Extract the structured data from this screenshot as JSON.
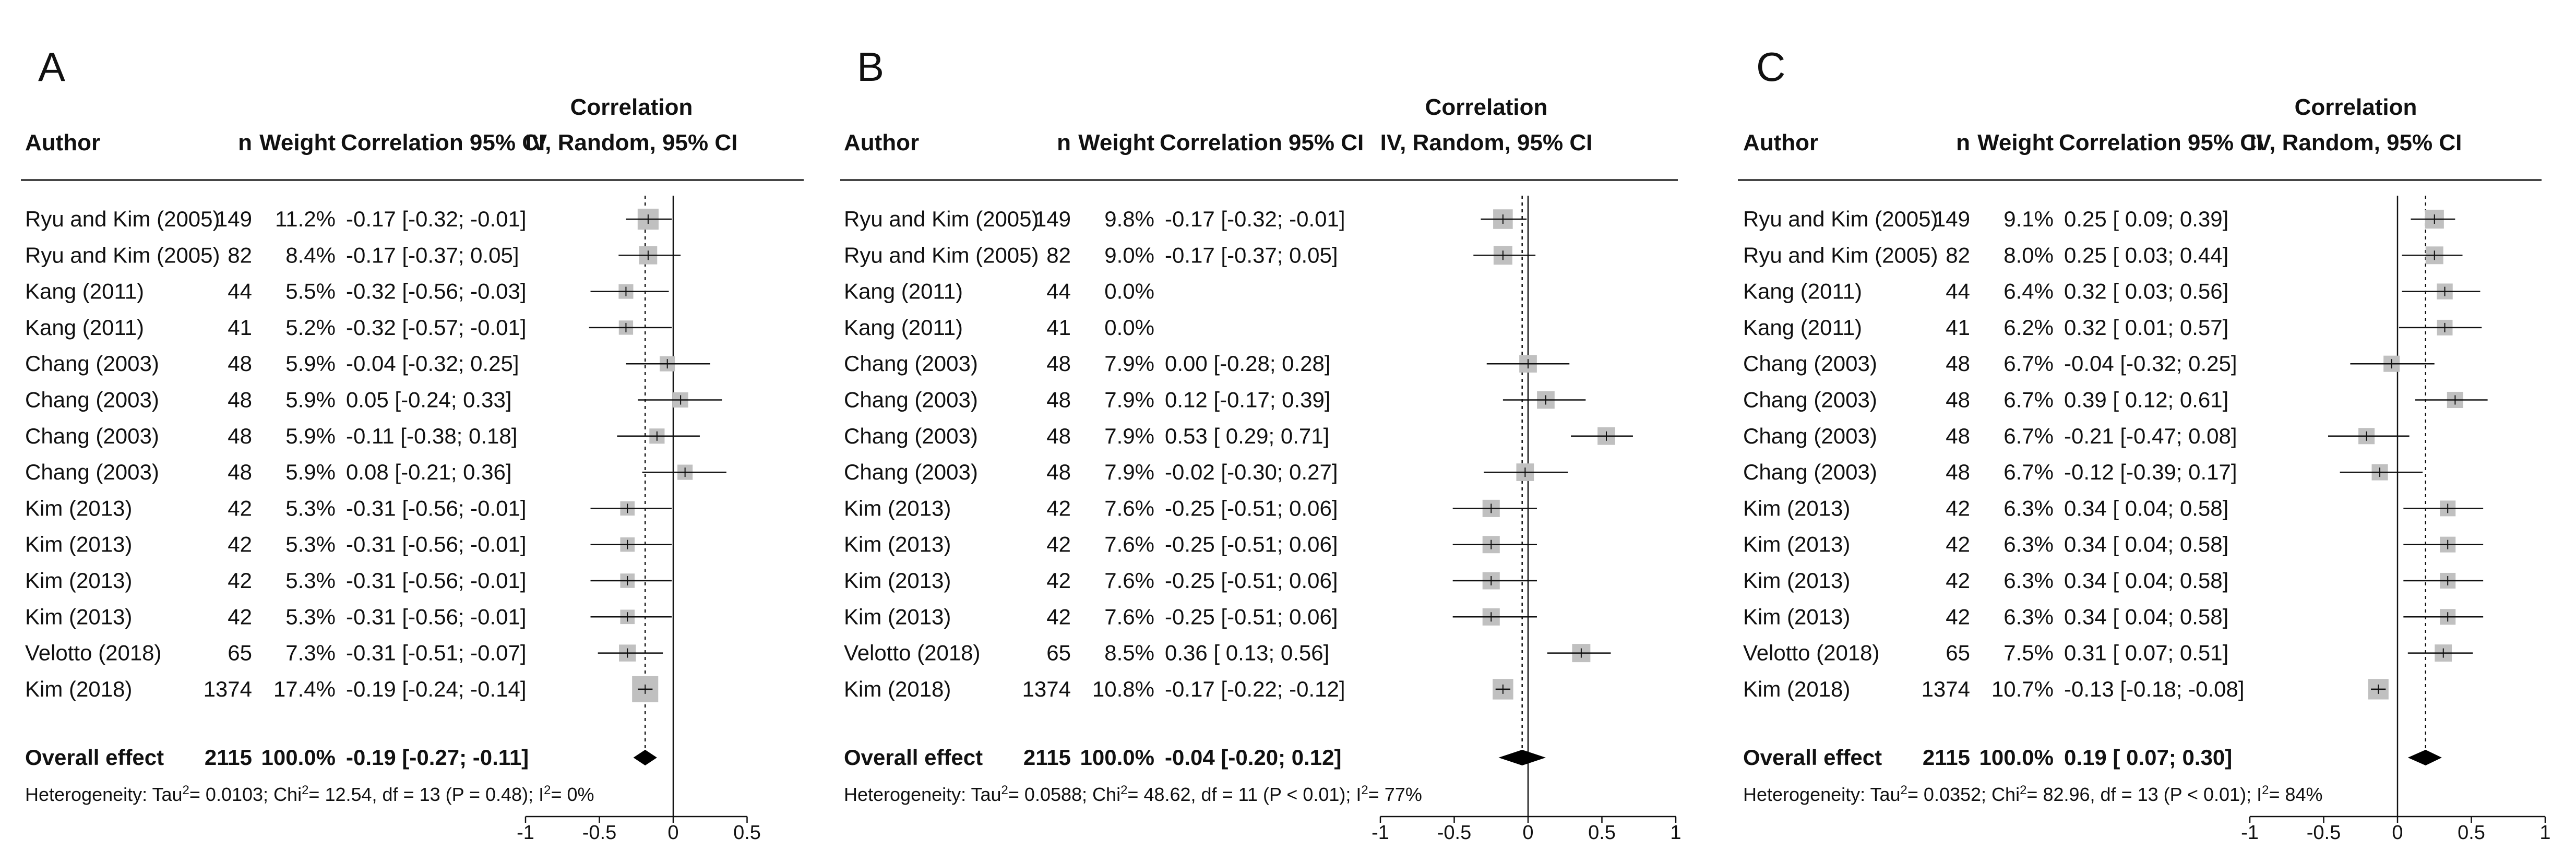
{
  "headers": {
    "author": "Author",
    "n": "n",
    "weight": "Weight",
    "correlation_ci": "Correlation 95% CI",
    "plot_line1": "Correlation",
    "plot_line2": "IV, Random, 95% CI"
  },
  "chart_data": [
    {
      "type": "forest",
      "panel": "A",
      "x_ticks": [
        "-1",
        "-0.5",
        "0",
        "0.5"
      ],
      "xlim": [
        -1,
        0.5
      ],
      "null_line": 0,
      "studies": [
        {
          "author": "Ryu and Kim (2005)",
          "n": "149",
          "weight": "11.2%",
          "ci_text": "-0.17 [-0.32; -0.01]",
          "estimate": -0.17,
          "lower": -0.32,
          "upper": -0.01,
          "w": 11.2
        },
        {
          "author": "Ryu and Kim (2005)",
          "n": "82",
          "weight": "8.4%",
          "ci_text": "-0.17 [-0.37; 0.05]",
          "estimate": -0.17,
          "lower": -0.37,
          "upper": 0.05,
          "w": 8.4
        },
        {
          "author": "Kang (2011)",
          "n": "44",
          "weight": "5.5%",
          "ci_text": "-0.32 [-0.56; -0.03]",
          "estimate": -0.32,
          "lower": -0.56,
          "upper": -0.03,
          "w": 5.5
        },
        {
          "author": "Kang (2011)",
          "n": "41",
          "weight": "5.2%",
          "ci_text": "-0.32 [-0.57; -0.01]",
          "estimate": -0.32,
          "lower": -0.57,
          "upper": -0.01,
          "w": 5.2
        },
        {
          "author": "Chang (2003)",
          "n": "48",
          "weight": "5.9%",
          "ci_text": "-0.04 [-0.32; 0.25]",
          "estimate": -0.04,
          "lower": -0.32,
          "upper": 0.25,
          "w": 5.9
        },
        {
          "author": "Chang (2003)",
          "n": "48",
          "weight": "5.9%",
          "ci_text": "0.05 [-0.24; 0.33]",
          "estimate": 0.05,
          "lower": -0.24,
          "upper": 0.33,
          "w": 5.9
        },
        {
          "author": "Chang (2003)",
          "n": "48",
          "weight": "5.9%",
          "ci_text": "-0.11 [-0.38; 0.18]",
          "estimate": -0.11,
          "lower": -0.38,
          "upper": 0.18,
          "w": 5.9
        },
        {
          "author": "Chang (2003)",
          "n": "48",
          "weight": "5.9%",
          "ci_text": "0.08 [-0.21; 0.36]",
          "estimate": 0.08,
          "lower": -0.21,
          "upper": 0.36,
          "w": 5.9
        },
        {
          "author": "Kim (2013)",
          "n": "42",
          "weight": "5.3%",
          "ci_text": "-0.31 [-0.56; -0.01]",
          "estimate": -0.31,
          "lower": -0.56,
          "upper": -0.01,
          "w": 5.3
        },
        {
          "author": "Kim (2013)",
          "n": "42",
          "weight": "5.3%",
          "ci_text": "-0.31 [-0.56; -0.01]",
          "estimate": -0.31,
          "lower": -0.56,
          "upper": -0.01,
          "w": 5.3
        },
        {
          "author": "Kim (2013)",
          "n": "42",
          "weight": "5.3%",
          "ci_text": "-0.31 [-0.56; -0.01]",
          "estimate": -0.31,
          "lower": -0.56,
          "upper": -0.01,
          "w": 5.3
        },
        {
          "author": "Kim (2013)",
          "n": "42",
          "weight": "5.3%",
          "ci_text": "-0.31 [-0.56; -0.01]",
          "estimate": -0.31,
          "lower": -0.56,
          "upper": -0.01,
          "w": 5.3
        },
        {
          "author": "Velotto (2018)",
          "n": "65",
          "weight": "7.3%",
          "ci_text": "-0.31 [-0.51; -0.07]",
          "estimate": -0.31,
          "lower": -0.51,
          "upper": -0.07,
          "w": 7.3
        },
        {
          "author": "Kim (2018)",
          "n": "1374",
          "weight": "17.4%",
          "ci_text": "-0.19 [-0.24; -0.14]",
          "estimate": -0.19,
          "lower": -0.24,
          "upper": -0.14,
          "w": 17.4
        }
      ],
      "overall": {
        "label": "Overall effect",
        "n": "2115",
        "weight": "100.0%",
        "ci_text": "-0.19 [-0.27; -0.11]",
        "estimate": -0.19,
        "lower": -0.27,
        "upper": -0.11
      },
      "heterogeneity": {
        "prefix": "Heterogeneity: Tau",
        "tau2": "= 0.0103; Chi",
        "chi2": "= 12.54, df = 13 (P = 0.48); I",
        "i2": "= 0%",
        "sup": "2"
      }
    },
    {
      "type": "forest",
      "panel": "B",
      "x_ticks": [
        "-1",
        "-0.5",
        "0",
        "0.5",
        "1"
      ],
      "xlim": [
        -1,
        1
      ],
      "null_line": 0,
      "studies": [
        {
          "author": "Ryu and Kim (2005)",
          "n": "149",
          "weight": "9.8%",
          "ci_text": "-0.17 [-0.32; -0.01]",
          "estimate": -0.17,
          "lower": -0.32,
          "upper": -0.01,
          "w": 9.8
        },
        {
          "author": "Ryu and Kim (2005)",
          "n": "82",
          "weight": "9.0%",
          "ci_text": "-0.17 [-0.37; 0.05]",
          "estimate": -0.17,
          "lower": -0.37,
          "upper": 0.05,
          "w": 9.0
        },
        {
          "author": "Kang (2011)",
          "n": "44",
          "weight": "0.0%",
          "ci_text": "",
          "estimate": null,
          "lower": null,
          "upper": null,
          "w": 0
        },
        {
          "author": "Kang (2011)",
          "n": "41",
          "weight": "0.0%",
          "ci_text": "",
          "estimate": null,
          "lower": null,
          "upper": null,
          "w": 0
        },
        {
          "author": "Chang (2003)",
          "n": "48",
          "weight": "7.9%",
          "ci_text": "0.00 [-0.28; 0.28]",
          "estimate": 0.0,
          "lower": -0.28,
          "upper": 0.28,
          "w": 7.9
        },
        {
          "author": "Chang (2003)",
          "n": "48",
          "weight": "7.9%",
          "ci_text": "0.12 [-0.17; 0.39]",
          "estimate": 0.12,
          "lower": -0.17,
          "upper": 0.39,
          "w": 7.9
        },
        {
          "author": "Chang (2003)",
          "n": "48",
          "weight": "7.9%",
          "ci_text": "0.53 [ 0.29; 0.71]",
          "estimate": 0.53,
          "lower": 0.29,
          "upper": 0.71,
          "w": 7.9
        },
        {
          "author": "Chang (2003)",
          "n": "48",
          "weight": "7.9%",
          "ci_text": "-0.02 [-0.30; 0.27]",
          "estimate": -0.02,
          "lower": -0.3,
          "upper": 0.27,
          "w": 7.9
        },
        {
          "author": "Kim (2013)",
          "n": "42",
          "weight": "7.6%",
          "ci_text": "-0.25 [-0.51; 0.06]",
          "estimate": -0.25,
          "lower": -0.51,
          "upper": 0.06,
          "w": 7.6
        },
        {
          "author": "Kim (2013)",
          "n": "42",
          "weight": "7.6%",
          "ci_text": "-0.25 [-0.51; 0.06]",
          "estimate": -0.25,
          "lower": -0.51,
          "upper": 0.06,
          "w": 7.6
        },
        {
          "author": "Kim (2013)",
          "n": "42",
          "weight": "7.6%",
          "ci_text": "-0.25 [-0.51; 0.06]",
          "estimate": -0.25,
          "lower": -0.51,
          "upper": 0.06,
          "w": 7.6
        },
        {
          "author": "Kim (2013)",
          "n": "42",
          "weight": "7.6%",
          "ci_text": "-0.25 [-0.51; 0.06]",
          "estimate": -0.25,
          "lower": -0.51,
          "upper": 0.06,
          "w": 7.6
        },
        {
          "author": "Velotto (2018)",
          "n": "65",
          "weight": "8.5%",
          "ci_text": "0.36 [ 0.13; 0.56]",
          "estimate": 0.36,
          "lower": 0.13,
          "upper": 0.56,
          "w": 8.5
        },
        {
          "author": "Kim (2018)",
          "n": "1374",
          "weight": "10.8%",
          "ci_text": "-0.17 [-0.22; -0.12]",
          "estimate": -0.17,
          "lower": -0.22,
          "upper": -0.12,
          "w": 10.8
        }
      ],
      "overall": {
        "label": "Overall effect",
        "n": "2115",
        "weight": "100.0%",
        "ci_text": "-0.04 [-0.20; 0.12]",
        "estimate": -0.04,
        "lower": -0.2,
        "upper": 0.12
      },
      "heterogeneity": {
        "prefix": "Heterogeneity: Tau",
        "tau2": "= 0.0588; Chi",
        "chi2": "= 48.62, df = 11 (P < 0.01); I",
        "i2": "= 77%",
        "sup": "2"
      }
    },
    {
      "type": "forest",
      "panel": "C",
      "x_ticks": [
        "-1",
        "-0.5",
        "0",
        "0.5",
        "1"
      ],
      "xlim": [
        -1,
        1
      ],
      "null_line": 0,
      "studies": [
        {
          "author": "Ryu and Kim (2005)",
          "n": "149",
          "weight": "9.1%",
          "ci_text": "0.25 [ 0.09; 0.39]",
          "estimate": 0.25,
          "lower": 0.09,
          "upper": 0.39,
          "w": 9.1
        },
        {
          "author": "Ryu and Kim (2005)",
          "n": "82",
          "weight": "8.0%",
          "ci_text": "0.25 [ 0.03; 0.44]",
          "estimate": 0.25,
          "lower": 0.03,
          "upper": 0.44,
          "w": 8.0
        },
        {
          "author": "Kang (2011)",
          "n": "44",
          "weight": "6.4%",
          "ci_text": "0.32 [ 0.03; 0.56]",
          "estimate": 0.32,
          "lower": 0.03,
          "upper": 0.56,
          "w": 6.4
        },
        {
          "author": "Kang (2011)",
          "n": "41",
          "weight": "6.2%",
          "ci_text": "0.32 [ 0.01; 0.57]",
          "estimate": 0.32,
          "lower": 0.01,
          "upper": 0.57,
          "w": 6.2
        },
        {
          "author": "Chang (2003)",
          "n": "48",
          "weight": "6.7%",
          "ci_text": "-0.04 [-0.32; 0.25]",
          "estimate": -0.04,
          "lower": -0.32,
          "upper": 0.25,
          "w": 6.7
        },
        {
          "author": "Chang (2003)",
          "n": "48",
          "weight": "6.7%",
          "ci_text": "0.39 [ 0.12; 0.61]",
          "estimate": 0.39,
          "lower": 0.12,
          "upper": 0.61,
          "w": 6.7
        },
        {
          "author": "Chang (2003)",
          "n": "48",
          "weight": "6.7%",
          "ci_text": "-0.21 [-0.47; 0.08]",
          "estimate": -0.21,
          "lower": -0.47,
          "upper": 0.08,
          "w": 6.7
        },
        {
          "author": "Chang (2003)",
          "n": "48",
          "weight": "6.7%",
          "ci_text": "-0.12 [-0.39; 0.17]",
          "estimate": -0.12,
          "lower": -0.39,
          "upper": 0.17,
          "w": 6.7
        },
        {
          "author": "Kim (2013)",
          "n": "42",
          "weight": "6.3%",
          "ci_text": "0.34 [ 0.04; 0.58]",
          "estimate": 0.34,
          "lower": 0.04,
          "upper": 0.58,
          "w": 6.3
        },
        {
          "author": "Kim (2013)",
          "n": "42",
          "weight": "6.3%",
          "ci_text": "0.34 [ 0.04; 0.58]",
          "estimate": 0.34,
          "lower": 0.04,
          "upper": 0.58,
          "w": 6.3
        },
        {
          "author": "Kim (2013)",
          "n": "42",
          "weight": "6.3%",
          "ci_text": "0.34 [ 0.04; 0.58]",
          "estimate": 0.34,
          "lower": 0.04,
          "upper": 0.58,
          "w": 6.3
        },
        {
          "author": "Kim (2013)",
          "n": "42",
          "weight": "6.3%",
          "ci_text": "0.34 [ 0.04; 0.58]",
          "estimate": 0.34,
          "lower": 0.04,
          "upper": 0.58,
          "w": 6.3
        },
        {
          "author": "Velotto (2018)",
          "n": "65",
          "weight": "7.5%",
          "ci_text": "0.31 [ 0.07; 0.51]",
          "estimate": 0.31,
          "lower": 0.07,
          "upper": 0.51,
          "w": 7.5
        },
        {
          "author": "Kim (2018)",
          "n": "1374",
          "weight": "10.7%",
          "ci_text": "-0.13 [-0.18; -0.08]",
          "estimate": -0.13,
          "lower": -0.18,
          "upper": -0.08,
          "w": 10.7
        }
      ],
      "overall": {
        "label": "Overall effect",
        "n": "2115",
        "weight": "100.0%",
        "ci_text": "0.19 [ 0.07; 0.30]",
        "estimate": 0.19,
        "lower": 0.07,
        "upper": 0.3
      },
      "heterogeneity": {
        "prefix": "Heterogeneity: Tau",
        "tau2": "= 0.0352; Chi",
        "chi2": "= 82.96, df = 13 (P < 0.01); I",
        "i2": "= 84%",
        "sup": "2"
      }
    }
  ]
}
